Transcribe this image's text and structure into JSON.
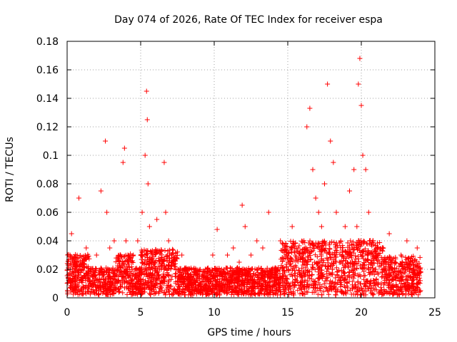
{
  "chart_data": {
    "type": "scatter",
    "title": "Day 074 of 2026, Rate Of TEC Index for receiver espa",
    "xlabel": "GPS time / hours",
    "ylabel": "ROTI / TECUs",
    "xlim": [
      0,
      25
    ],
    "ylim": [
      0,
      0.18
    ],
    "xticks": [
      0,
      5,
      10,
      15,
      20,
      25
    ],
    "yticks": [
      0,
      0.02,
      0.04,
      0.06,
      0.08,
      0.1,
      0.12,
      0.14,
      0.16,
      0.18
    ],
    "xtick_labels": [
      "0",
      "5",
      "10",
      "15",
      "20",
      "25"
    ],
    "ytick_labels": [
      "0",
      "0.02",
      "0.04",
      "0.06",
      "0.08",
      "0.1",
      "0.12",
      "0.14",
      "0.16",
      "0.18"
    ],
    "grid": true,
    "marker": "+",
    "color": "#ff0000",
    "series": [
      {
        "x": [
          0.2,
          0.3,
          0.5,
          0.8,
          1.0,
          1.3,
          1.6,
          2.0,
          2.3,
          2.6,
          2.7,
          2.9,
          3.2,
          3.5,
          3.8,
          3.9,
          4.0,
          4.2,
          4.5,
          4.8,
          5.1,
          5.3,
          5.4,
          5.45,
          5.5,
          5.6,
          5.8,
          6.1,
          6.4,
          6.6,
          6.7,
          6.9,
          7.1,
          7.4,
          7.8,
          8.2,
          8.6,
          9.0,
          9.5,
          9.9,
          10.2,
          10.5,
          10.9,
          11.3,
          11.7,
          11.9,
          12.1,
          12.5,
          12.9,
          13.3,
          13.7,
          14.1,
          14.5,
          14.9,
          15.3,
          15.7,
          16.1,
          16.3,
          16.5,
          16.7,
          16.9,
          17.1,
          17.3,
          17.5,
          17.7,
          17.9,
          18.1,
          18.3,
          18.6,
          18.9,
          19.2,
          19.5,
          19.7,
          19.8,
          19.9,
          20.0,
          20.1,
          20.3,
          20.5,
          20.8,
          21.1,
          21.5,
          21.9,
          22.3,
          22.7,
          23.1,
          23.5,
          23.8,
          24.0
        ],
        "y": [
          0.03,
          0.045,
          0.025,
          0.07,
          0.02,
          0.035,
          0.02,
          0.03,
          0.075,
          0.11,
          0.06,
          0.035,
          0.04,
          0.02,
          0.095,
          0.105,
          0.04,
          0.025,
          0.03,
          0.04,
          0.06,
          0.1,
          0.145,
          0.125,
          0.08,
          0.05,
          0.03,
          0.055,
          0.02,
          0.095,
          0.06,
          0.04,
          0.025,
          0.02,
          0.03,
          0.015,
          0.02,
          0.015,
          0.02,
          0.03,
          0.048,
          0.02,
          0.03,
          0.035,
          0.025,
          0.065,
          0.05,
          0.03,
          0.04,
          0.035,
          0.06,
          0.02,
          0.04,
          0.03,
          0.05,
          0.035,
          0.04,
          0.12,
          0.133,
          0.09,
          0.07,
          0.06,
          0.05,
          0.08,
          0.15,
          0.11,
          0.095,
          0.06,
          0.04,
          0.05,
          0.075,
          0.09,
          0.05,
          0.15,
          0.168,
          0.135,
          0.1,
          0.09,
          0.06,
          0.04,
          0.03,
          0.035,
          0.045,
          0.025,
          0.03,
          0.04,
          0.02,
          0.035,
          0.02
        ]
      }
    ]
  }
}
